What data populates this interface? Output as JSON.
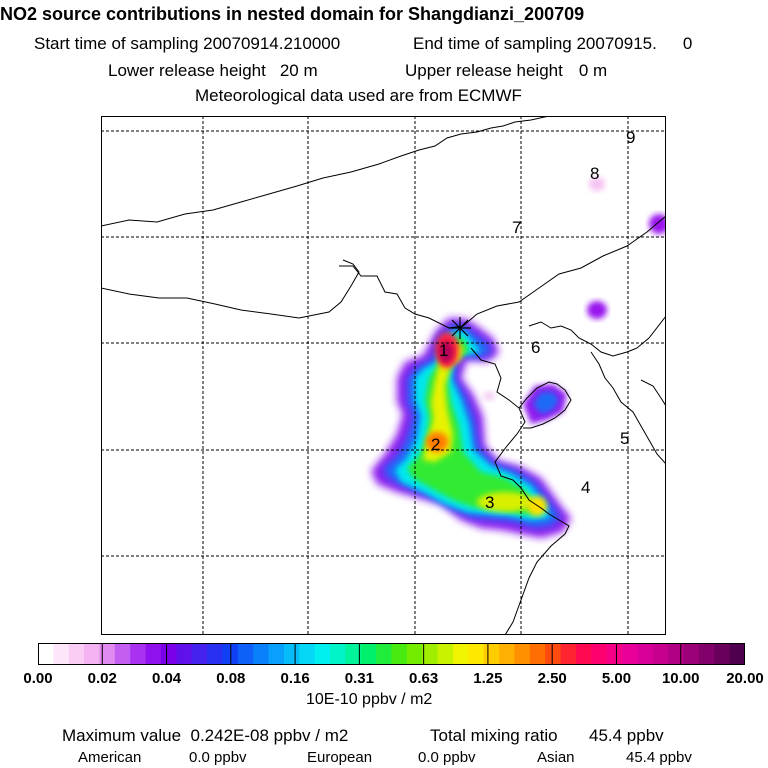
{
  "header": {
    "title": "NO2 source contributions in nested domain for Shangdianzi_200709",
    "start_label": "Start time of sampling 20070914.210000",
    "end_label": "End time of sampling 20070915.",
    "end_value": "0",
    "lower_release": "Lower release height",
    "lower_value": "20 m",
    "upper_release": "Upper release height",
    "upper_value": "0 m",
    "met_note": "Meteorological data used are from ECMWF"
  },
  "map": {
    "source_regions": [
      {
        "label": "1"
      },
      {
        "label": "2"
      },
      {
        "label": "3"
      },
      {
        "label": "4"
      },
      {
        "label": "5"
      },
      {
        "label": "6"
      },
      {
        "label": "7"
      },
      {
        "label": "8"
      },
      {
        "label": "9"
      }
    ],
    "receptor_marker": "Shangdianzi station (+)"
  },
  "colorbar": {
    "ticks": [
      "0.00",
      "0.02",
      "0.04",
      "0.08",
      "0.16",
      "0.31",
      "0.63",
      "1.25",
      "2.50",
      "5.00",
      "10.00",
      "20.00"
    ],
    "unit": "10E-10 ppbv / m2",
    "colors": [
      "#ffffff",
      "#fde6fa",
      "#f9cdf6",
      "#f3b3f2",
      "#e08af2",
      "#c25ef2",
      "#a832f0",
      "#9010ee",
      "#7a00ea",
      "#5f10ec",
      "#4522ee",
      "#2a30f2",
      "#1040f6",
      "#0e60f8",
      "#0a80fa",
      "#08a0fb",
      "#06bdfa",
      "#04d8f6",
      "#00f0f0",
      "#00f4c8",
      "#00f59a",
      "#00f06c",
      "#20ec3c",
      "#48ea10",
      "#74ec00",
      "#a0ef00",
      "#c8f200",
      "#f0f400",
      "#ffe800",
      "#ffcc00",
      "#ffb000",
      "#ff9000",
      "#ff6e00",
      "#ff4a10",
      "#ff2430",
      "#ff0a50",
      "#ff0070",
      "#f60088",
      "#e80098",
      "#d80098",
      "#c8008e",
      "#b20084",
      "#9c0078",
      "#82006a",
      "#68005c",
      "#4e004e"
    ]
  },
  "footer": {
    "max_label": "Maximum value",
    "max_value": "0.242E-08 ppbv / m2",
    "total_label": "Total mixing ratio",
    "total_value": "45.4 ppbv",
    "regions": [
      {
        "name": "American",
        "value": "0.0 ppbv"
      },
      {
        "name": "European",
        "value": "0.0 ppbv"
      },
      {
        "name": "Asian",
        "value": "45.4 ppbv"
      }
    ]
  }
}
